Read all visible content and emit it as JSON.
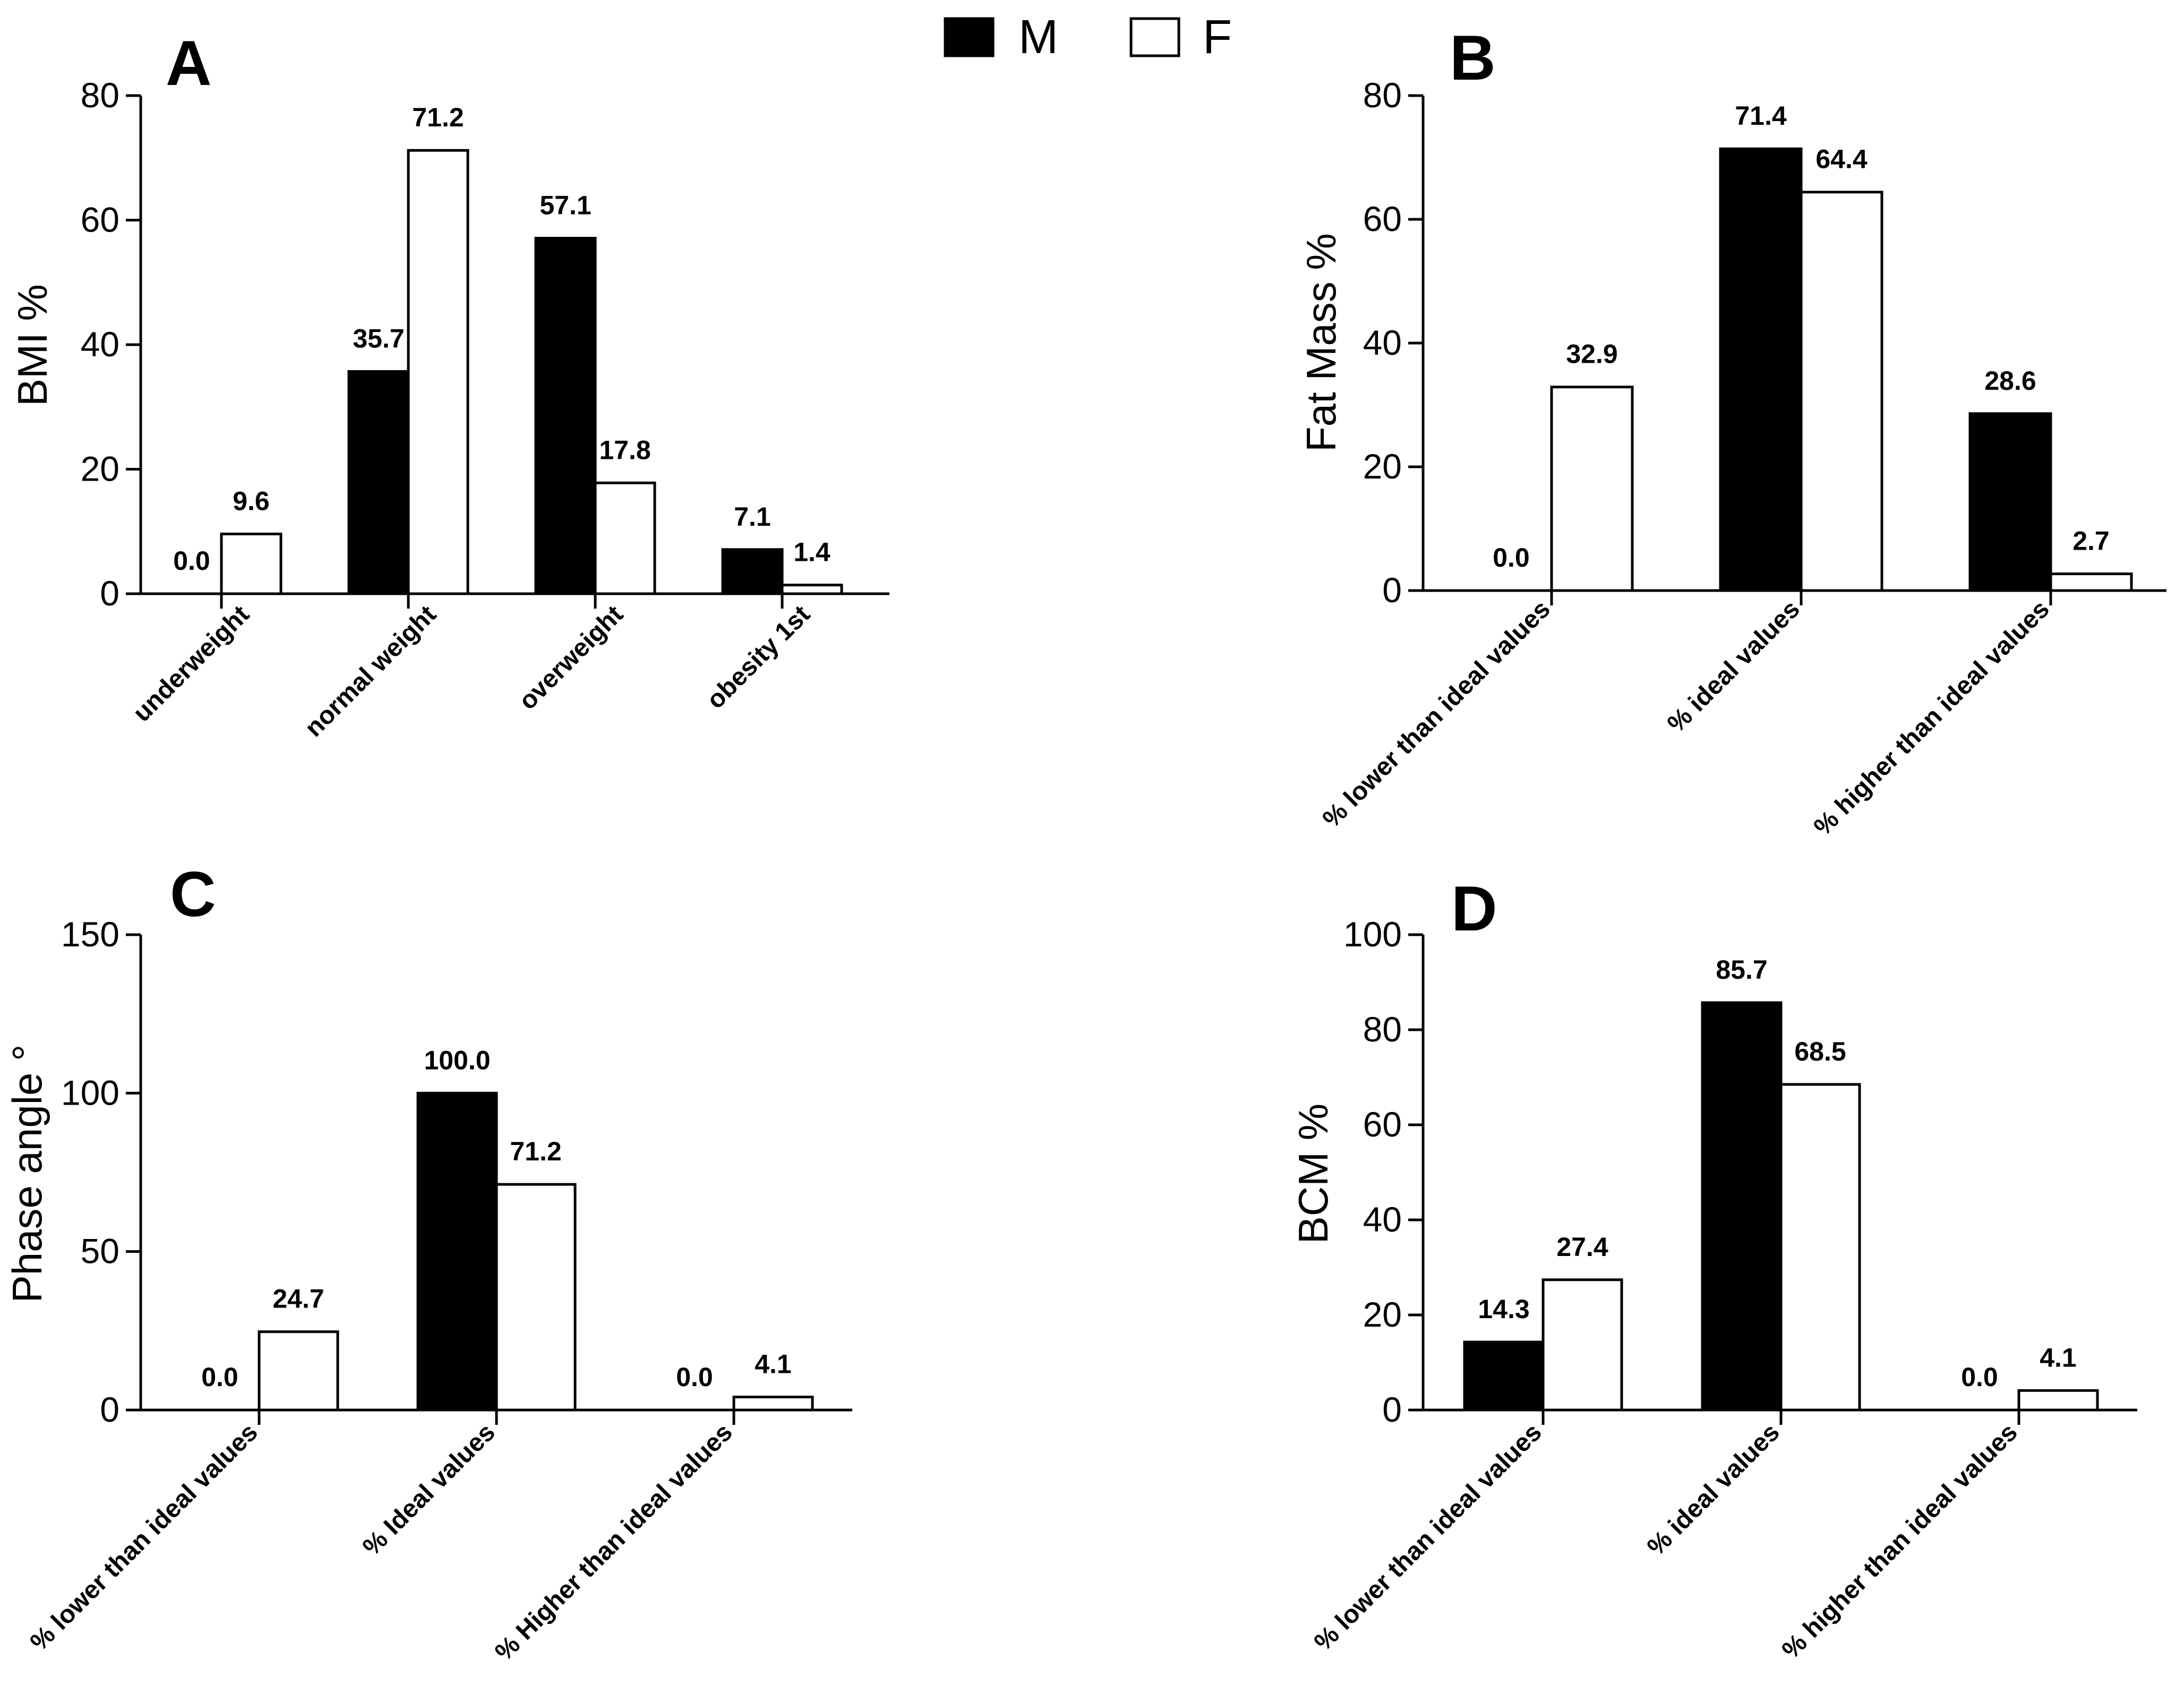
{
  "legend": [
    {
      "name": "M",
      "color": "#000000"
    },
    {
      "name": "F",
      "color": "#ffffff"
    }
  ],
  "chart_data": [
    {
      "id": "A",
      "type": "bar",
      "panel_label": "A",
      "ylabel": "BMI %",
      "ylim": [
        0,
        80
      ],
      "yticks": [
        "0",
        "20",
        "40",
        "60",
        "80"
      ],
      "categories": [
        "underweight",
        "normal weight",
        "overweight",
        "obesity 1st"
      ],
      "series": [
        {
          "name": "M",
          "values": [
            0.0,
            35.7,
            57.1,
            7.1
          ],
          "labels": [
            "0.0",
            "35.7",
            "57.1",
            "7.1"
          ]
        },
        {
          "name": "F",
          "values": [
            9.6,
            71.2,
            17.8,
            1.4
          ],
          "labels": [
            "9.6",
            "71.2",
            "17.8",
            "1.4"
          ]
        }
      ]
    },
    {
      "id": "B",
      "type": "bar",
      "panel_label": "B",
      "ylabel": "Fat Mass %",
      "ylim": [
        0,
        80
      ],
      "yticks": [
        "0",
        "20",
        "40",
        "60",
        "80"
      ],
      "categories": [
        "% lower than ideal values",
        "%  ideal values",
        "% higher than ideal values"
      ],
      "series": [
        {
          "name": "M",
          "values": [
            0.0,
            71.4,
            28.6
          ],
          "labels": [
            "0.0",
            "71.4",
            "28.6"
          ]
        },
        {
          "name": "F",
          "values": [
            32.9,
            64.4,
            2.7
          ],
          "labels": [
            "32.9",
            "64.4",
            "2.7"
          ]
        }
      ]
    },
    {
      "id": "C",
      "type": "bar",
      "panel_label": "C",
      "ylabel": "Phase angle °",
      "ylim": [
        0,
        150
      ],
      "yticks": [
        "0",
        "50",
        "100",
        "150"
      ],
      "categories": [
        "% lower than ideal values",
        "% Ideal values",
        "% Higher than ideal values"
      ],
      "series": [
        {
          "name": "M",
          "values": [
            0.0,
            100.0,
            0.0
          ],
          "labels": [
            "0.0",
            "100.0",
            "0.0"
          ]
        },
        {
          "name": "F",
          "values": [
            24.7,
            71.2,
            4.1
          ],
          "labels": [
            "24.7",
            "71.2",
            "4.1"
          ]
        }
      ]
    },
    {
      "id": "D",
      "type": "bar",
      "panel_label": "D",
      "ylabel": "BCM %",
      "ylim": [
        0,
        100
      ],
      "yticks": [
        "0",
        "20",
        "40",
        "60",
        "80",
        "100"
      ],
      "categories": [
        "% lower than ideal values",
        "%  ideal values",
        "% higher than ideal values"
      ],
      "series": [
        {
          "name": "M",
          "values": [
            14.3,
            85.7,
            0.0
          ],
          "labels": [
            "14.3",
            "85.7",
            "0.0"
          ]
        },
        {
          "name": "F",
          "values": [
            27.4,
            68.5,
            4.1
          ],
          "labels": [
            "27.4",
            "68.5",
            "4.1"
          ]
        }
      ]
    }
  ]
}
